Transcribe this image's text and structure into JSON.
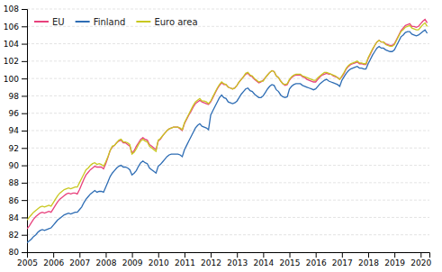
{
  "chart_data": {
    "type": "line",
    "x": [
      2005,
      2005.0833333333,
      2005.1666666667,
      2005.25,
      2005.3333333333,
      2005.4166666667,
      2005.5,
      2005.5833333333,
      2005.6666666667,
      2005.75,
      2005.8333333333,
      2005.9166666667,
      2006,
      2006.0833333333,
      2006.1666666667,
      2006.25,
      2006.3333333333,
      2006.4166666667,
      2006.5,
      2006.5833333333,
      2006.6666666667,
      2006.75,
      2006.8333333333,
      2006.9166666667,
      2007,
      2007.0833333333,
      2007.1666666667,
      2007.25,
      2007.3333333333,
      2007.4166666667,
      2007.5,
      2007.5833333333,
      2007.6666666667,
      2007.75,
      2007.8333333333,
      2007.9166666667,
      2008,
      2008.0833333333,
      2008.1666666667,
      2008.25,
      2008.3333333333,
      2008.4166666667,
      2008.5,
      2008.5833333333,
      2008.6666666667,
      2008.75,
      2008.8333333333,
      2008.9166666667,
      2009,
      2009.0833333333,
      2009.1666666667,
      2009.25,
      2009.3333333333,
      2009.4166666667,
      2009.5,
      2009.5833333333,
      2009.6666666667,
      2009.75,
      2009.8333333333,
      2009.9166666667,
      2010,
      2010.0833333333,
      2010.1666666667,
      2010.25,
      2010.3333333333,
      2010.4166666667,
      2010.5,
      2010.5833333333,
      2010.6666666667,
      2010.75,
      2010.8333333333,
      2010.9166666667,
      2011,
      2011.0833333333,
      2011.1666666667,
      2011.25,
      2011.3333333333,
      2011.4166666667,
      2011.5,
      2011.5833333333,
      2011.6666666667,
      2011.75,
      2011.8333333333,
      2011.9166666667,
      2012,
      2012.0833333333,
      2012.1666666667,
      2012.25,
      2012.3333333333,
      2012.4166666667,
      2012.5,
      2012.5833333333,
      2012.6666666667,
      2012.75,
      2012.8333333333,
      2012.9166666667,
      2013,
      2013.0833333333,
      2013.1666666667,
      2013.25,
      2013.3333333333,
      2013.4166666667,
      2013.5,
      2013.5833333333,
      2013.6666666667,
      2013.75,
      2013.8333333333,
      2013.9166666667,
      2014,
      2014.0833333333,
      2014.1666666667,
      2014.25,
      2014.3333333333,
      2014.4166666667,
      2014.5,
      2014.5833333333,
      2014.6666666667,
      2014.75,
      2014.8333333333,
      2014.9166666667,
      2015,
      2015.0833333333,
      2015.1666666667,
      2015.25,
      2015.3333333333,
      2015.4166666667,
      2015.5,
      2015.5833333333,
      2015.6666666667,
      2015.75,
      2015.8333333333,
      2015.9166666667,
      2016,
      2016.0833333333,
      2016.1666666667,
      2016.25,
      2016.3333333333,
      2016.4166666667,
      2016.5,
      2016.5833333333,
      2016.6666666667,
      2016.75,
      2016.8333333333,
      2016.9166666667,
      2017,
      2017.0833333333,
      2017.1666666667,
      2017.25,
      2017.3333333333,
      2017.4166666667,
      2017.5,
      2017.5833333333,
      2017.6666666667,
      2017.75,
      2017.8333333333,
      2017.9166666667,
      2018,
      2018.0833333333,
      2018.1666666667,
      2018.25,
      2018.3333333333,
      2018.4166666667,
      2018.5,
      2018.5833333333,
      2018.6666666667,
      2018.75,
      2018.8333333333,
      2018.9166666667,
      2019,
      2019.0833333333,
      2019.1666666667,
      2019.25,
      2019.3333333333,
      2019.4166666667,
      2019.5,
      2019.5833333333,
      2019.6666666667,
      2019.75,
      2019.8333333333,
      2019.9166666667,
      2020,
      2020.0833333333,
      2020.1666666667,
      2020.25
    ],
    "series": [
      {
        "name": "EU",
        "color": "#e8417c",
        "values": [
          82.7,
          83.0,
          83.4,
          83.8,
          84.1,
          84.3,
          84.5,
          84.6,
          84.5,
          84.6,
          84.7,
          84.6,
          85.0,
          85.4,
          85.8,
          86.1,
          86.3,
          86.5,
          86.7,
          86.8,
          86.7,
          86.8,
          86.8,
          86.7,
          87.2,
          87.8,
          88.4,
          88.9,
          89.2,
          89.5,
          89.7,
          89.9,
          89.8,
          89.8,
          89.8,
          89.6,
          90.2,
          90.9,
          91.7,
          92.1,
          92.3,
          92.6,
          92.8,
          92.9,
          92.6,
          92.6,
          92.4,
          92.2,
          91.4,
          91.7,
          92.2,
          92.6,
          93.0,
          93.2,
          93.0,
          92.9,
          92.4,
          92.2,
          92.0,
          91.8,
          92.8,
          93.0,
          93.4,
          93.7,
          94.0,
          94.2,
          94.3,
          94.4,
          94.4,
          94.4,
          94.2,
          94.0,
          94.8,
          95.3,
          95.8,
          96.2,
          96.7,
          97.1,
          97.3,
          97.5,
          97.3,
          97.2,
          97.1,
          97.0,
          97.3,
          97.8,
          98.3,
          98.8,
          99.2,
          99.5,
          99.3,
          99.3,
          99.0,
          98.9,
          98.8,
          98.9,
          99.2,
          99.6,
          99.9,
          100.2,
          100.5,
          100.6,
          100.3,
          100.2,
          99.9,
          99.7,
          99.5,
          99.6,
          99.8,
          100.1,
          100.4,
          100.7,
          100.9,
          100.8,
          100.3,
          100.1,
          99.7,
          99.4,
          99.2,
          99.3,
          99.8,
          100.1,
          100.3,
          100.4,
          100.4,
          100.4,
          100.2,
          100.1,
          99.9,
          99.8,
          99.7,
          99.6,
          99.6,
          99.9,
          100.2,
          100.4,
          100.5,
          100.6,
          100.5,
          100.5,
          100.3,
          100.2,
          100.1,
          99.9,
          100.2,
          100.6,
          101.1,
          101.4,
          101.6,
          101.7,
          101.8,
          101.9,
          101.7,
          101.7,
          101.6,
          101.6,
          102.3,
          102.8,
          103.3,
          103.8,
          104.2,
          104.4,
          104.2,
          104.2,
          104.0,
          103.9,
          103.8,
          103.8,
          104.0,
          104.5,
          105.0,
          105.5,
          105.8,
          106.1,
          106.2,
          106.3,
          106.0,
          106.0,
          105.9,
          106.0,
          106.3,
          106.6,
          106.8,
          106.4
        ]
      },
      {
        "name": "Finland",
        "color": "#2e6db4",
        "values": [
          81.1,
          81.3,
          81.5,
          81.8,
          82.0,
          82.3,
          82.5,
          82.6,
          82.5,
          82.6,
          82.7,
          82.8,
          83.1,
          83.4,
          83.7,
          83.9,
          84.1,
          84.3,
          84.4,
          84.5,
          84.4,
          84.5,
          84.6,
          84.6,
          84.9,
          85.2,
          85.7,
          86.1,
          86.4,
          86.7,
          86.9,
          87.1,
          86.9,
          87.0,
          87.0,
          86.9,
          87.5,
          88.1,
          88.7,
          89.1,
          89.4,
          89.7,
          89.9,
          90.0,
          89.8,
          89.8,
          89.7,
          89.5,
          88.9,
          89.1,
          89.4,
          89.9,
          90.3,
          90.5,
          90.3,
          90.2,
          89.7,
          89.5,
          89.3,
          89.1,
          89.9,
          90.1,
          90.4,
          90.7,
          91.0,
          91.2,
          91.3,
          91.3,
          91.3,
          91.3,
          91.2,
          91.0,
          91.8,
          92.3,
          92.8,
          93.3,
          93.8,
          94.3,
          94.6,
          94.8,
          94.5,
          94.4,
          94.3,
          94.1,
          95.8,
          96.3,
          96.8,
          97.3,
          97.8,
          98.1,
          97.8,
          97.7,
          97.3,
          97.2,
          97.1,
          97.2,
          97.4,
          97.8,
          98.2,
          98.5,
          98.8,
          98.9,
          98.6,
          98.5,
          98.2,
          98.0,
          97.8,
          97.8,
          98.0,
          98.4,
          98.8,
          99.1,
          99.3,
          99.2,
          98.7,
          98.5,
          98.1,
          97.9,
          97.8,
          97.9,
          98.8,
          99.1,
          99.3,
          99.4,
          99.4,
          99.4,
          99.2,
          99.1,
          99.0,
          98.9,
          98.8,
          98.7,
          98.8,
          99.1,
          99.4,
          99.6,
          99.8,
          99.9,
          99.7,
          99.6,
          99.5,
          99.4,
          99.3,
          99.1,
          99.8,
          100.2,
          100.6,
          100.9,
          101.1,
          101.2,
          101.3,
          101.4,
          101.2,
          101.2,
          101.1,
          101.1,
          101.7,
          102.2,
          102.7,
          103.1,
          103.5,
          103.7,
          103.5,
          103.5,
          103.3,
          103.2,
          103.1,
          103.1,
          103.3,
          103.8,
          104.3,
          104.8,
          105.0,
          105.3,
          105.4,
          105.4,
          105.1,
          105.0,
          104.9,
          105.0,
          105.2,
          105.4,
          105.6,
          105.2
        ]
      },
      {
        "name": "Euro area",
        "color": "#c8c820",
        "values": [
          83.7,
          84.0,
          84.3,
          84.6,
          84.8,
          85.0,
          85.2,
          85.3,
          85.2,
          85.3,
          85.4,
          85.3,
          85.7,
          86.1,
          86.5,
          86.8,
          87.0,
          87.2,
          87.3,
          87.4,
          87.3,
          87.4,
          87.5,
          87.5,
          88.0,
          88.5,
          89.0,
          89.5,
          89.7,
          90.0,
          90.2,
          90.3,
          90.1,
          90.2,
          90.1,
          89.9,
          90.4,
          91.0,
          91.7,
          92.2,
          92.3,
          92.6,
          92.9,
          93.0,
          92.7,
          92.7,
          92.6,
          92.4,
          91.3,
          91.5,
          91.9,
          92.4,
          92.8,
          93.0,
          92.8,
          92.7,
          92.2,
          92.0,
          91.8,
          91.6,
          92.9,
          93.1,
          93.4,
          93.7,
          94.0,
          94.2,
          94.3,
          94.4,
          94.4,
          94.4,
          94.3,
          94.1,
          94.9,
          95.4,
          95.9,
          96.4,
          96.9,
          97.3,
          97.5,
          97.7,
          97.4,
          97.4,
          97.3,
          97.1,
          97.4,
          97.9,
          98.4,
          98.9,
          99.3,
          99.6,
          99.4,
          99.3,
          99.0,
          98.9,
          98.8,
          98.9,
          99.2,
          99.6,
          99.9,
          100.2,
          100.6,
          100.7,
          100.4,
          100.3,
          100.0,
          99.8,
          99.6,
          99.7,
          99.7,
          100.1,
          100.4,
          100.7,
          100.9,
          100.8,
          100.3,
          100.1,
          99.7,
          99.4,
          99.3,
          99.4,
          99.9,
          100.2,
          100.4,
          100.5,
          100.5,
          100.5,
          100.3,
          100.2,
          100.1,
          100.0,
          99.9,
          99.8,
          99.8,
          100.1,
          100.3,
          100.5,
          100.7,
          100.7,
          100.6,
          100.5,
          100.4,
          100.3,
          100.1,
          99.9,
          100.3,
          100.7,
          101.2,
          101.5,
          101.7,
          101.8,
          101.9,
          102.0,
          101.8,
          101.8,
          101.7,
          101.7,
          102.4,
          102.9,
          103.4,
          103.8,
          104.2,
          104.4,
          104.2,
          104.2,
          103.9,
          103.8,
          103.7,
          103.7,
          103.9,
          104.4,
          104.9,
          105.4,
          105.6,
          105.9,
          106.0,
          106.1,
          105.8,
          105.7,
          105.6,
          105.6,
          105.9,
          106.2,
          106.4,
          106.0
        ]
      }
    ],
    "xlim": [
      2005,
      2020.3333333333
    ],
    "xticks": [
      2005,
      2006,
      2007,
      2008,
      2009,
      2010,
      2011,
      2012,
      2013,
      2014,
      2015,
      2016,
      2017,
      2018,
      2019,
      2020
    ],
    "ylim": [
      80,
      108
    ],
    "yticks": [
      80,
      82,
      84,
      86,
      88,
      90,
      92,
      94,
      96,
      98,
      100,
      102,
      104,
      106,
      108
    ],
    "grid": true,
    "legend": "upper left"
  }
}
